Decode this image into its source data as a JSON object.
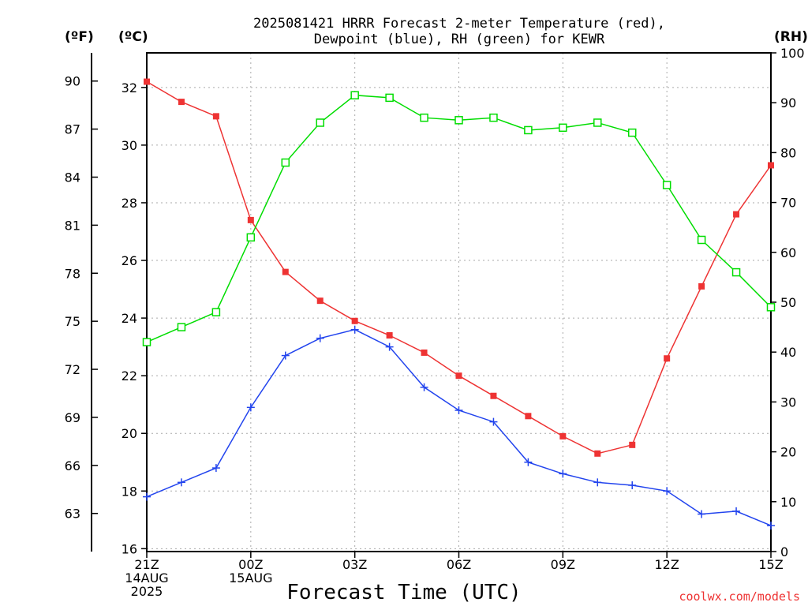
{
  "chart_data": {
    "type": "line",
    "title_line1": "2025081421 HRRR Forecast 2-meter Temperature (red),",
    "title_line2": "Dewpoint (blue), RH (green) for KEWR",
    "xlabel": "Forecast Time (UTC)",
    "credit": "coolwx.com/models",
    "units": {
      "f": "(ºF)",
      "c": "(ºC)",
      "rh": "(RH)"
    },
    "x": [
      0,
      1,
      2,
      3,
      4,
      5,
      6,
      7,
      8,
      9,
      10,
      11,
      12,
      13,
      14,
      15,
      16,
      17,
      18
    ],
    "x_ticks": [
      {
        "x": 0,
        "lines": [
          "21Z",
          "14AUG",
          "2025"
        ]
      },
      {
        "x": 3,
        "lines": [
          "00Z",
          "15AUG"
        ]
      },
      {
        "x": 6,
        "lines": [
          "03Z"
        ]
      },
      {
        "x": 9,
        "lines": [
          "06Z"
        ]
      },
      {
        "x": 12,
        "lines": [
          "09Z"
        ]
      },
      {
        "x": 15,
        "lines": [
          "12Z"
        ]
      },
      {
        "x": 18,
        "lines": [
          "15Z"
        ]
      }
    ],
    "xlim": [
      0,
      18
    ],
    "ylim_c": [
      15.9,
      33.2
    ],
    "ylim_rh": [
      0,
      100
    ],
    "c_ticks": [
      16,
      18,
      20,
      22,
      24,
      26,
      28,
      30,
      32
    ],
    "f_ticks": [
      63,
      66,
      69,
      72,
      75,
      78,
      81,
      84,
      87,
      90
    ],
    "rh_ticks": [
      0,
      10,
      20,
      30,
      40,
      50,
      60,
      70,
      80,
      90,
      100
    ],
    "grid": true,
    "series": [
      {
        "name": "Temperature",
        "axis": "c",
        "color": "#ee3333",
        "marker": "filled-square",
        "values": [
          32.2,
          31.5,
          31.0,
          27.4,
          25.6,
          24.6,
          23.9,
          23.4,
          22.8,
          22.0,
          21.3,
          20.6,
          19.9,
          19.3,
          19.6,
          22.6,
          25.1,
          27.6,
          29.3
        ]
      },
      {
        "name": "Dewpoint",
        "axis": "c",
        "color": "#2244ee",
        "marker": "plus",
        "values": [
          17.8,
          18.3,
          18.8,
          20.9,
          22.7,
          23.3,
          23.6,
          23.0,
          21.6,
          20.8,
          20.4,
          19.0,
          18.6,
          18.3,
          18.2,
          18.0,
          17.2,
          17.3,
          16.8
        ]
      },
      {
        "name": "RH",
        "axis": "rh",
        "color": "#00dd00",
        "marker": "open-square",
        "values": [
          42,
          45,
          48,
          63,
          78,
          86,
          91.5,
          91,
          87,
          86.5,
          87,
          84.5,
          85,
          86,
          84,
          73.5,
          62.5,
          56,
          49
        ]
      }
    ]
  }
}
